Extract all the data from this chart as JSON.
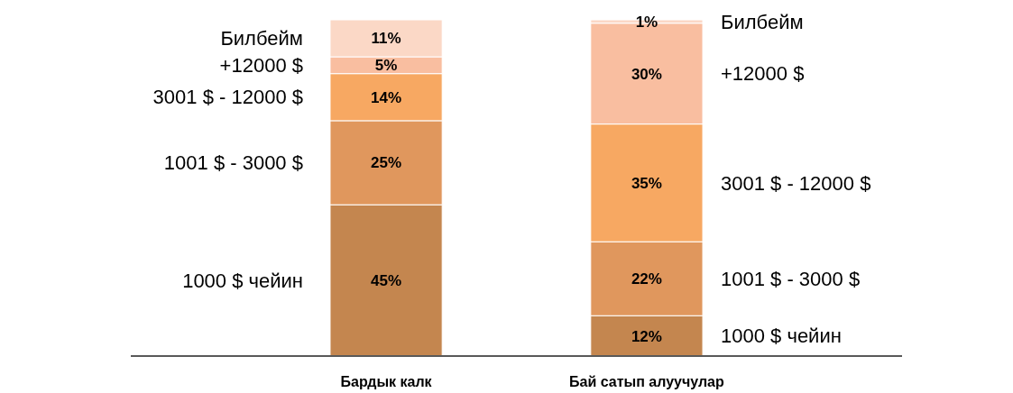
{
  "chart_data": {
    "type": "bar",
    "stacked": true,
    "categories": [
      "Бардык калк",
      "Бай сатып алуучулар"
    ],
    "series": [
      {
        "name": "1000 $ чейин",
        "color": "#c4864f",
        "values": [
          45,
          12
        ],
        "value_labels": [
          "45%",
          "12%"
        ]
      },
      {
        "name": "1001 $ - 3000 $",
        "color": "#e0975d",
        "values": [
          25,
          22
        ],
        "value_labels": [
          "25%",
          "22%"
        ]
      },
      {
        "name": "3001 $ - 12000 $",
        "color": "#f7a862",
        "values": [
          14,
          35
        ],
        "value_labels": [
          "14%",
          "35%"
        ]
      },
      {
        "name": "+12000 $",
        "color": "#f9bea0",
        "values": [
          5,
          30
        ],
        "value_labels": [
          "5%",
          "30%"
        ]
      },
      {
        "name": "Билбейм",
        "color": "#fbd8c6",
        "values": [
          11,
          1
        ],
        "value_labels": [
          "11%",
          "1%"
        ]
      }
    ]
  }
}
